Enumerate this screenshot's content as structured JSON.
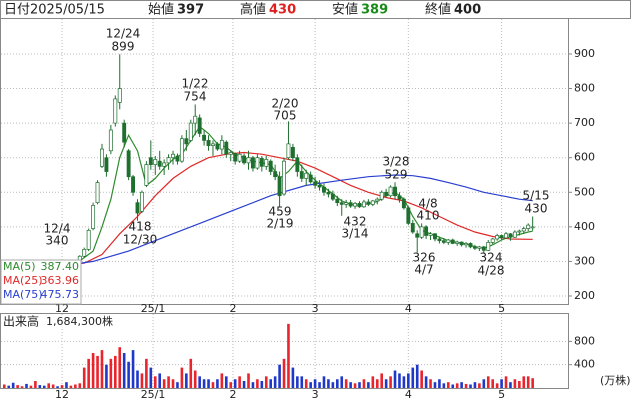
{
  "header": {
    "date_label": "日付",
    "date": "2025/05/15",
    "open_label": "始値",
    "open": 397,
    "high_label": "高値",
    "high": 430,
    "low_label": "安値",
    "low": 389,
    "close_label": "終値",
    "close": 400
  },
  "chart_data": [
    {
      "type": "candlestick",
      "ylim": [
        174,
        1004
      ],
      "yticks": [
        200,
        300,
        400,
        500,
        600,
        700,
        800,
        900
      ],
      "grid": true,
      "xticks": [
        {
          "value": 13,
          "label": "12"
        },
        {
          "value": 33.5,
          "label": "25/1"
        },
        {
          "value": 51.5,
          "label": "2"
        },
        {
          "value": 70,
          "label": "3"
        },
        {
          "value": 91,
          "label": "4"
        },
        {
          "value": 112,
          "label": "5"
        }
      ],
      "up_fill": "#ffffff",
      "down_fill": "#1f6f2f",
      "candle_stroke": "#1f6f2f",
      "ohlc": [
        [
          288,
          295,
          284,
          292
        ],
        [
          292,
          298,
          288,
          290
        ],
        [
          290,
          294,
          285,
          287
        ],
        [
          287,
          293,
          283,
          291
        ],
        [
          291,
          297,
          287,
          294
        ],
        [
          294,
          299,
          289,
          290
        ],
        [
          290,
          295,
          286,
          293
        ],
        [
          293,
          298,
          289,
          296
        ],
        [
          296,
          299,
          290,
          292
        ],
        [
          292,
          296,
          287,
          289
        ],
        [
          289,
          294,
          284,
          291
        ],
        [
          291,
          297,
          288,
          295
        ],
        [
          295,
          299,
          291,
          293
        ],
        [
          293,
          298,
          289,
          296
        ],
        [
          296,
          299,
          292,
          294
        ],
        [
          294,
          298,
          290,
          297
        ],
        [
          297,
          305,
          293,
          300
        ],
        [
          300,
          318,
          298,
          315
        ],
        [
          315,
          340,
          312,
          335
        ],
        [
          335,
          395,
          330,
          390
        ],
        [
          395,
          470,
          390,
          462
        ],
        [
          470,
          535,
          465,
          528
        ],
        [
          575,
          640,
          570,
          625
        ],
        [
          600,
          610,
          545,
          560
        ],
        [
          620,
          695,
          610,
          680
        ],
        [
          700,
          780,
          690,
          770
        ],
        [
          760,
          899,
          740,
          800
        ],
        [
          700,
          710,
          630,
          645
        ],
        [
          620,
          625,
          535,
          545
        ],
        [
          545,
          550,
          490,
          500
        ],
        [
          470,
          480,
          418,
          440
        ],
        [
          445,
          505,
          440,
          500
        ],
        [
          520,
          590,
          515,
          580
        ],
        [
          600,
          650,
          565,
          580
        ],
        [
          580,
          605,
          550,
          595
        ],
        [
          590,
          620,
          565,
          575
        ],
        [
          575,
          595,
          550,
          585
        ],
        [
          585,
          610,
          565,
          600
        ],
        [
          600,
          620,
          580,
          610
        ],
        [
          605,
          612,
          580,
          590
        ],
        [
          590,
          665,
          585,
          655
        ],
        [
          655,
          680,
          620,
          640
        ],
        [
          650,
          710,
          645,
          700
        ],
        [
          700,
          754,
          665,
          720
        ],
        [
          715,
          725,
          660,
          670
        ],
        [
          665,
          680,
          635,
          650
        ],
        [
          650,
          665,
          620,
          635
        ],
        [
          635,
          650,
          605,
          640
        ],
        [
          640,
          645,
          620,
          625
        ],
        [
          625,
          665,
          610,
          650
        ],
        [
          645,
          650,
          600,
          610
        ],
        [
          610,
          620,
          590,
          615
        ],
        [
          612,
          615,
          580,
          590
        ],
        [
          590,
          620,
          585,
          610
        ],
        [
          605,
          612,
          580,
          585
        ],
        [
          585,
          620,
          565,
          600
        ],
        [
          600,
          605,
          560,
          570
        ],
        [
          570,
          610,
          565,
          600
        ],
        [
          598,
          605,
          560,
          575
        ],
        [
          575,
          605,
          565,
          595
        ],
        [
          590,
          595,
          550,
          560
        ],
        [
          560,
          580,
          535,
          545
        ],
        [
          545,
          560,
          459,
          490
        ],
        [
          495,
          600,
          490,
          590
        ],
        [
          600,
          705,
          595,
          640
        ],
        [
          630,
          640,
          590,
          600
        ],
        [
          600,
          610,
          545,
          560
        ],
        [
          560,
          580,
          530,
          540
        ],
        [
          540,
          565,
          520,
          555
        ],
        [
          550,
          560,
          525,
          530
        ],
        [
          530,
          545,
          510,
          520
        ],
        [
          520,
          535,
          505,
          515
        ],
        [
          515,
          525,
          490,
          500
        ],
        [
          500,
          510,
          485,
          495
        ],
        [
          495,
          505,
          475,
          480
        ],
        [
          480,
          490,
          460,
          470
        ],
        [
          470,
          480,
          432,
          465
        ],
        [
          465,
          478,
          455,
          470
        ],
        [
          470,
          478,
          455,
          460
        ],
        [
          460,
          472,
          452,
          468
        ],
        [
          468,
          474,
          455,
          458
        ],
        [
          458,
          478,
          455,
          472
        ],
        [
          472,
          480,
          460,
          465
        ],
        [
          465,
          478,
          460,
          475
        ],
        [
          475,
          485,
          465,
          480
        ],
        [
          480,
          505,
          475,
          500
        ],
        [
          500,
          510,
          485,
          490
        ],
        [
          490,
          520,
          485,
          515
        ],
        [
          515,
          529,
          480,
          490
        ],
        [
          490,
          500,
          470,
          480
        ],
        [
          480,
          485,
          450,
          455
        ],
        [
          455,
          460,
          405,
          410
        ],
        [
          410,
          420,
          380,
          385
        ],
        [
          380,
          390,
          326,
          370
        ],
        [
          370,
          410,
          365,
          400
        ],
        [
          400,
          405,
          365,
          375
        ],
        [
          375,
          385,
          362,
          380
        ],
        [
          380,
          382,
          358,
          365
        ],
        [
          365,
          372,
          352,
          360
        ],
        [
          360,
          368,
          350,
          355
        ],
        [
          355,
          365,
          348,
          362
        ],
        [
          362,
          366,
          350,
          352
        ],
        [
          352,
          360,
          345,
          356
        ],
        [
          356,
          358,
          343,
          348
        ],
        [
          348,
          356,
          340,
          352
        ],
        [
          352,
          355,
          338,
          342
        ],
        [
          342,
          348,
          333,
          338
        ],
        [
          338,
          345,
          330,
          342
        ],
        [
          342,
          345,
          324,
          332
        ],
        [
          332,
          362,
          330,
          355
        ],
        [
          355,
          368,
          350,
          365
        ],
        [
          365,
          380,
          360,
          375
        ],
        [
          375,
          378,
          362,
          368
        ],
        [
          368,
          385,
          365,
          380
        ],
        [
          380,
          382,
          360,
          370
        ],
        [
          370,
          390,
          368,
          385
        ],
        [
          385,
          392,
          375,
          388
        ],
        [
          388,
          400,
          380,
          395
        ],
        [
          395,
          410,
          388,
          405
        ],
        [
          397,
          430,
          389,
          400
        ]
      ],
      "series": [
        {
          "name": "MA(5)",
          "color": "#2e8b2e",
          "last": {
            "value": 387.4,
            "label": "387.40"
          },
          "x": [
            16,
            20,
            22,
            24,
            26,
            28,
            30,
            32,
            34,
            36,
            38,
            40,
            42,
            44,
            46,
            48,
            50,
            52,
            54,
            56,
            58,
            60,
            62,
            64,
            66,
            68,
            70,
            72,
            74,
            76,
            78,
            80,
            82,
            84,
            86,
            88,
            90,
            92,
            94,
            96,
            98,
            100,
            102,
            104,
            106,
            108,
            110,
            112,
            114,
            116,
            118,
            119
          ],
          "values": [
            292,
            330,
            400,
            480,
            600,
            665,
            620,
            520,
            540,
            570,
            595,
            610,
            650,
            690,
            670,
            640,
            630,
            610,
            600,
            590,
            585,
            580,
            540,
            560,
            590,
            560,
            535,
            515,
            495,
            475,
            465,
            462,
            467,
            473,
            490,
            500,
            480,
            430,
            390,
            380,
            370,
            360,
            355,
            350,
            343,
            338,
            348,
            362,
            372,
            378,
            385,
            387.4
          ]
        },
        {
          "name": "MA(25)",
          "color": "#e02828",
          "last": {
            "value": 363.96,
            "label": "363.96"
          },
          "x": [
            12,
            18,
            22,
            26,
            30,
            34,
            38,
            42,
            46,
            50,
            54,
            58,
            62,
            66,
            70,
            74,
            78,
            82,
            86,
            90,
            94,
            98,
            102,
            106,
            110,
            114,
            118,
            119
          ],
          "values": [
            290,
            295,
            320,
            380,
            430,
            490,
            540,
            575,
            600,
            610,
            615,
            610,
            600,
            590,
            570,
            545,
            520,
            500,
            485,
            475,
            455,
            430,
            405,
            385,
            372,
            365,
            364,
            363.96
          ]
        },
        {
          "name": "MA(75)",
          "color": "#2a3fd0",
          "last": {
            "value": 475.73,
            "label": "475.73"
          },
          "x": [
            12,
            20,
            28,
            36,
            44,
            52,
            60,
            68,
            76,
            82,
            88,
            92,
            96,
            100,
            104,
            108,
            112,
            116,
            119
          ],
          "values": [
            285,
            300,
            330,
            370,
            410,
            450,
            490,
            520,
            535,
            545,
            550,
            548,
            540,
            528,
            515,
            500,
            490,
            480,
            475.73
          ]
        }
      ],
      "annotations": [
        {
          "date": "12/24",
          "value": 899
        },
        {
          "date": "1/22",
          "value": 754
        },
        {
          "date": "2/20",
          "value": 705
        },
        {
          "date": "3/28",
          "value": 529
        },
        {
          "date": "4/8",
          "value": 410
        },
        {
          "date": "5/15",
          "value": 430
        },
        {
          "date": "12/4",
          "value": 340
        },
        {
          "date": "12/30",
          "value": 418
        },
        {
          "date": "2/19",
          "value": 459
        },
        {
          "date": "3/14",
          "value": 432
        },
        {
          "date": "4/7",
          "value": 326
        },
        {
          "date": "4/28",
          "value": 324
        }
      ]
    },
    {
      "type": "bar",
      "title": "出来高",
      "total": "1,684,300株",
      "unit": "(万株)",
      "ylim": [
        0,
        1235
      ],
      "yticks": [
        400,
        800
      ],
      "grid": true,
      "up_color": "#e8242c",
      "down_color": "#2038c8",
      "xticks": [
        {
          "value": 13,
          "label": "12"
        },
        {
          "value": 33.5,
          "label": "25/1"
        },
        {
          "value": 51.5,
          "label": "2"
        },
        {
          "value": 70,
          "label": "3"
        },
        {
          "value": 91,
          "label": "4"
        },
        {
          "value": 112,
          "label": "5"
        }
      ],
      "values": [
        60,
        40,
        90,
        50,
        30,
        70,
        40,
        120,
        50,
        40,
        80,
        60,
        30,
        50,
        100,
        40,
        60,
        80,
        350,
        500,
        600,
        550,
        650,
        400,
        500,
        550,
        700,
        600,
        450,
        650,
        300,
        250,
        500,
        350,
        200,
        250,
        150,
        200,
        150,
        100,
        350,
        250,
        500,
        300,
        200,
        150,
        150,
        100,
        150,
        250,
        200,
        100,
        150,
        200,
        120,
        250,
        100,
        150,
        120,
        200,
        150,
        200,
        400,
        500,
        1100,
        350,
        200,
        200,
        150,
        100,
        150,
        100,
        200,
        150,
        100,
        150,
        200,
        150,
        100,
        80,
        100,
        150,
        100,
        200,
        150,
        250,
        150,
        200,
        300,
        250,
        200,
        250,
        350,
        400,
        300,
        200,
        150,
        100,
        150,
        80,
        100,
        60,
        80,
        100,
        70,
        60,
        100,
        80,
        150,
        200,
        150,
        80,
        150,
        200,
        100,
        150,
        120,
        200,
        200,
        168.43
      ]
    }
  ]
}
